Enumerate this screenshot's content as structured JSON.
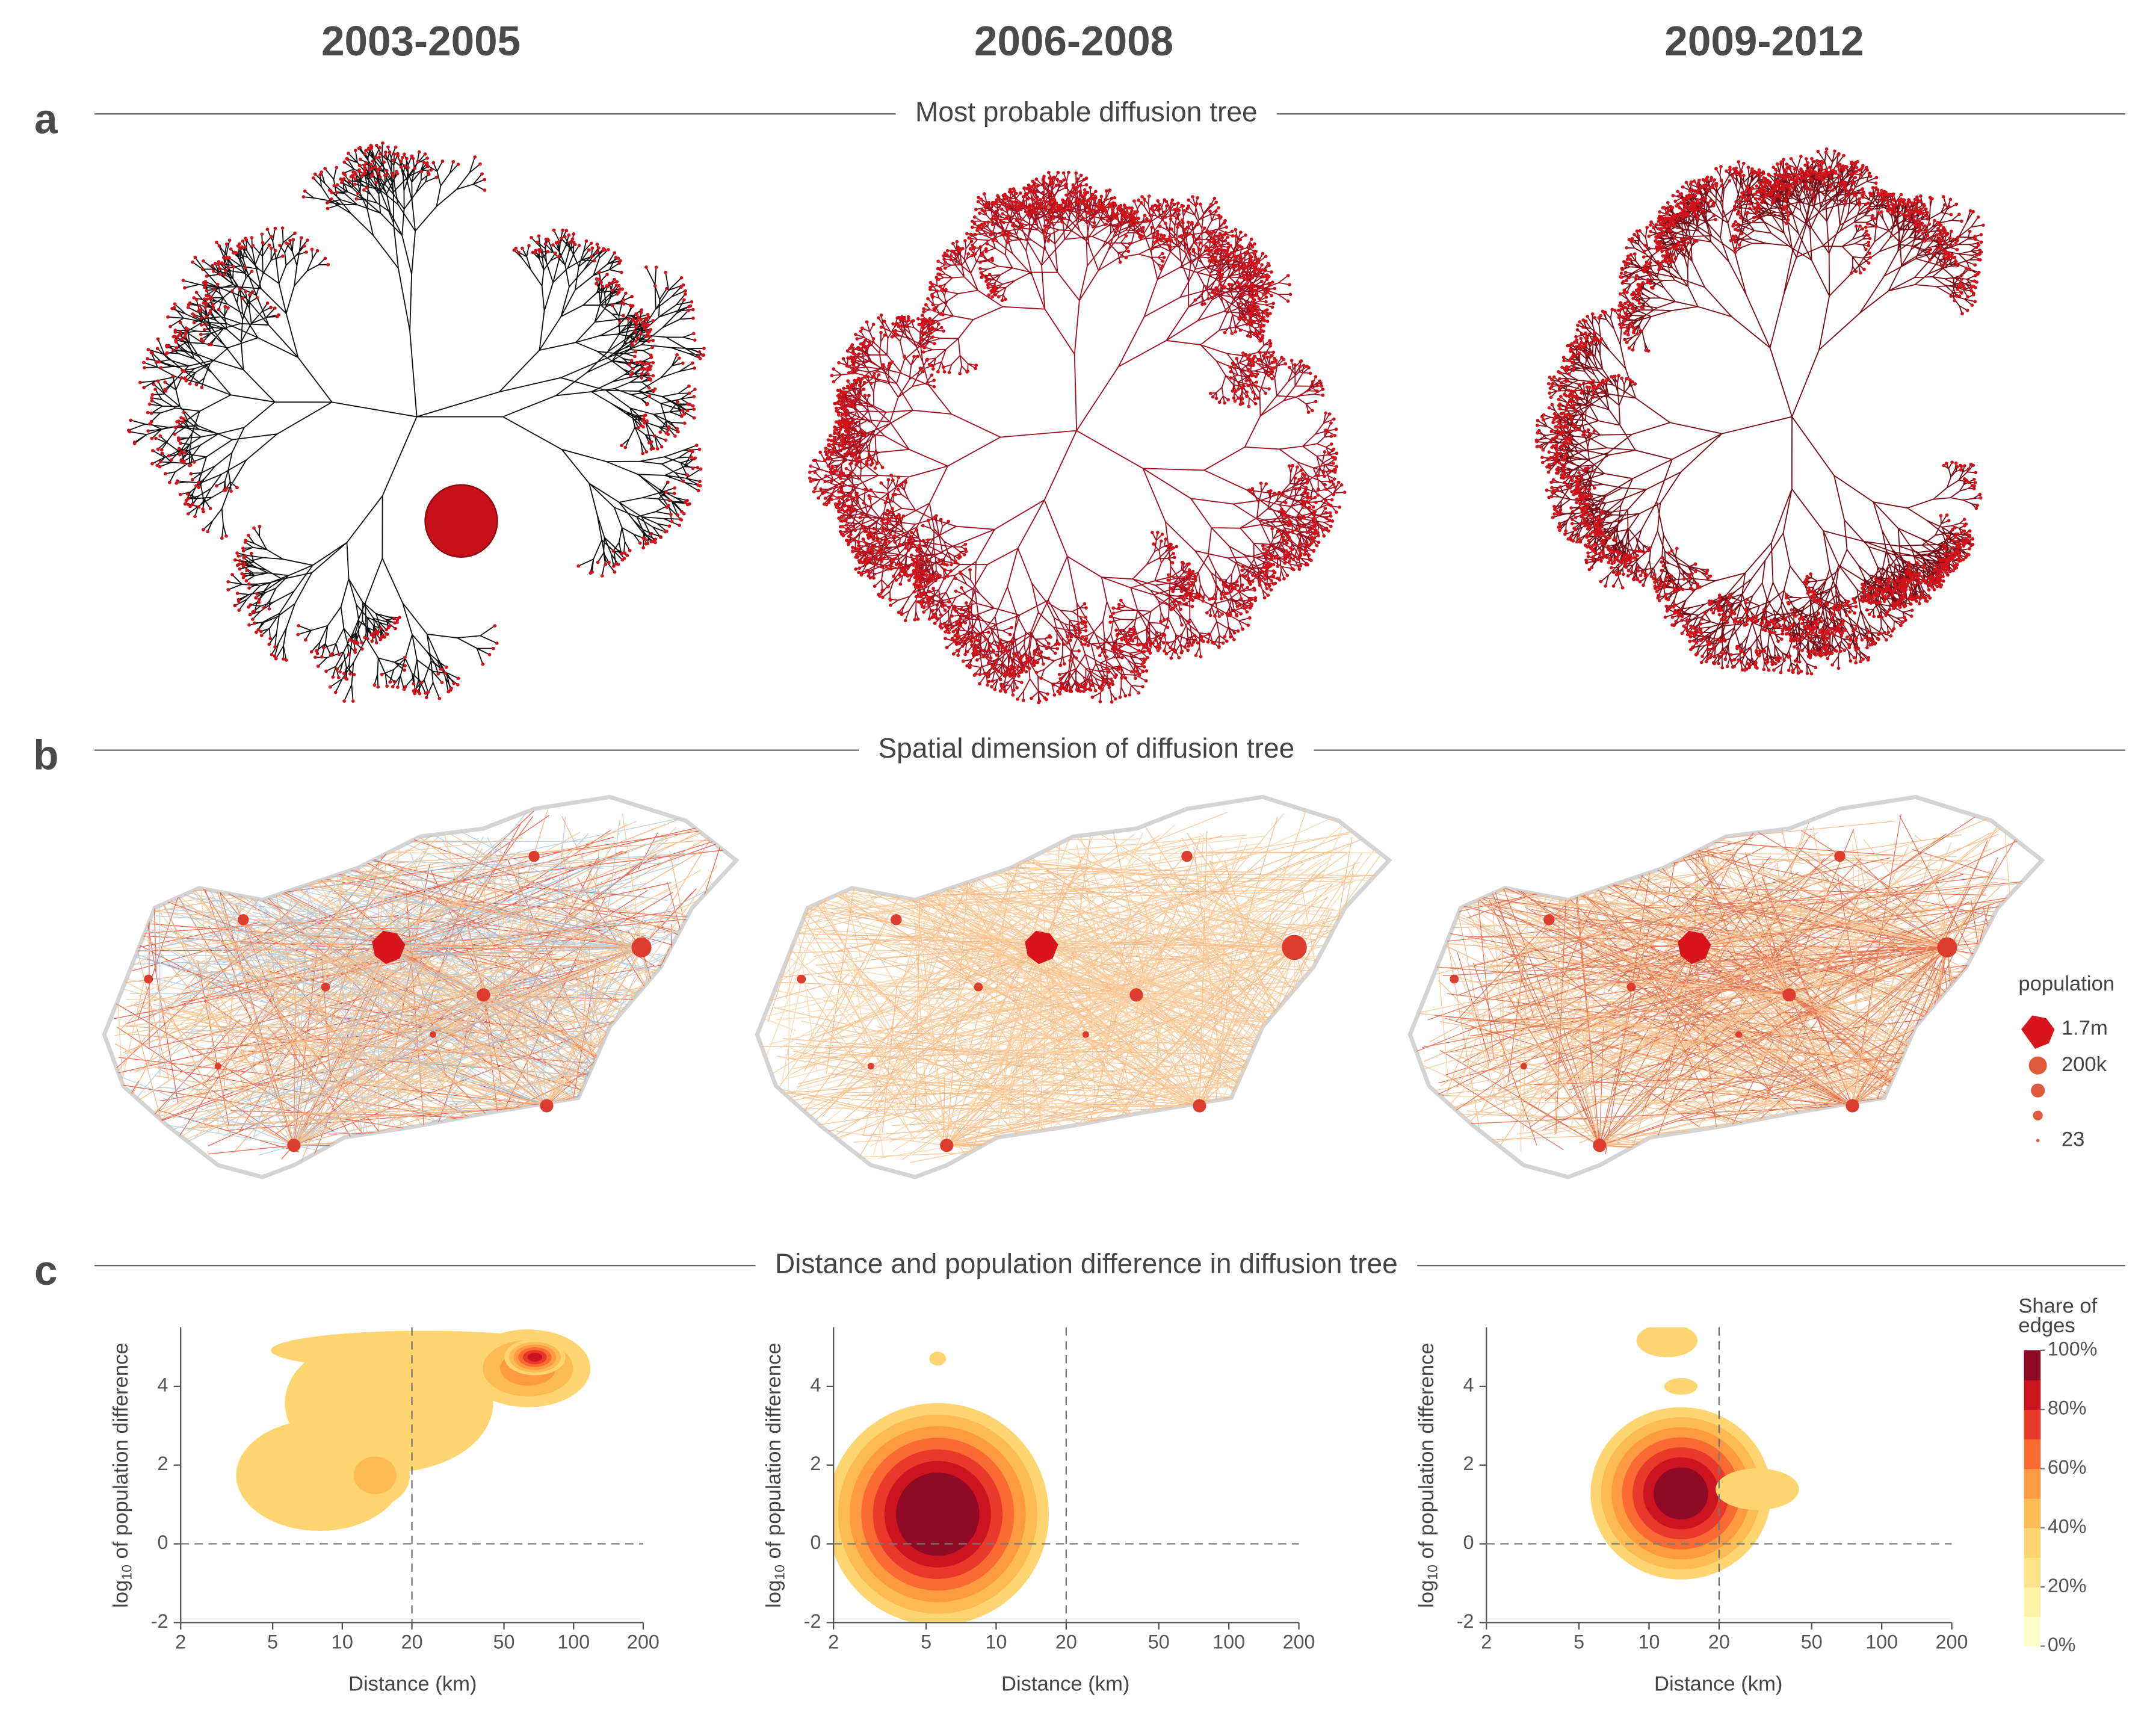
{
  "header": {
    "periods": [
      "2003-2005",
      "2006-2008",
      "2009-2012"
    ]
  },
  "sections": [
    {
      "label": "a",
      "title": "Most probable diffusion tree"
    },
    {
      "label": "b",
      "title": "Spatial dimension of diffusion tree"
    },
    {
      "label": "c",
      "title": "Distance and population difference in diffusion tree"
    }
  ],
  "population_legend": {
    "title": "population",
    "labels": [
      "1.7m",
      "200k",
      null,
      null,
      "23"
    ]
  },
  "chart_data": [
    {
      "type": "contour",
      "xlabel": "Distance (km)",
      "ylabel": {
        "base": "log",
        "subscript": "10",
        "rest": " of population difference"
      },
      "xscale": "log",
      "xlim": [
        2,
        200
      ],
      "ylim": [
        -2,
        5.5
      ],
      "xticks": [
        2,
        5,
        10,
        20,
        50,
        100,
        200
      ],
      "yticks": [
        -2,
        0,
        2,
        4
      ],
      "reference_lines": {
        "x": 20,
        "y": 0
      }
    },
    {
      "type": "contour",
      "xlabel": "Distance (km)",
      "ylabel": {
        "base": "log",
        "subscript": "10",
        "rest": " of population difference"
      },
      "xscale": "log",
      "xlim": [
        2,
        200
      ],
      "ylim": [
        -2,
        5.5
      ],
      "xticks": [
        2,
        5,
        10,
        20,
        50,
        100,
        200
      ],
      "yticks": [
        -2,
        0,
        2,
        4
      ],
      "reference_lines": {
        "x": 20,
        "y": 0
      }
    },
    {
      "type": "contour",
      "xlabel": "Distance (km)",
      "ylabel": {
        "base": "log",
        "subscript": "10",
        "rest": " of population difference"
      },
      "xscale": "log",
      "xlim": [
        2,
        200
      ],
      "ylim": [
        -2,
        5.5
      ],
      "xticks": [
        2,
        5,
        10,
        20,
        50,
        100,
        200
      ],
      "yticks": [
        -2,
        0,
        2,
        4
      ],
      "reference_lines": {
        "x": 20,
        "y": 0
      }
    }
  ],
  "colorbar": {
    "title": [
      "Share of",
      "edges"
    ],
    "lim": [
      0,
      100
    ],
    "colors": [
      "#ffffcc",
      "#fff3a8",
      "#ffe38a",
      "#fed570",
      "#fdbb55",
      "#fd9a42",
      "#f96b32",
      "#e8392a",
      "#cc1420",
      "#8e0a25"
    ],
    "ticks": [
      {
        "value": 0,
        "label": "0%"
      },
      {
        "value": 20,
        "label": "20%"
      },
      {
        "value": 40,
        "label": "40%"
      },
      {
        "value": 60,
        "label": "60%"
      },
      {
        "value": 80,
        "label": "80%"
      },
      {
        "value": 100,
        "label": "100%"
      }
    ]
  }
}
